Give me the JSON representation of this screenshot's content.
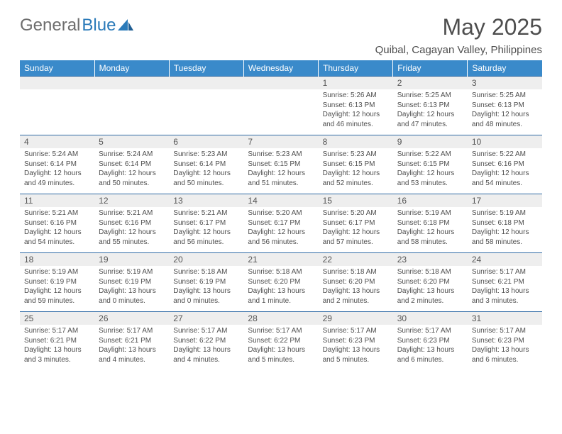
{
  "brand": {
    "word1": "General",
    "word2": "Blue",
    "word1_color": "#6d6d6d",
    "word2_color": "#2a7ab9"
  },
  "title": "May 2025",
  "location": "Quibal, Cagayan Valley, Philippines",
  "colors": {
    "header_bg": "#3a8aca",
    "header_text": "#ffffff",
    "rule": "#2f6aa5",
    "daynum_bg": "#eeeeee",
    "body_text": "#4e4e4e"
  },
  "dayHeaders": [
    "Sunday",
    "Monday",
    "Tuesday",
    "Wednesday",
    "Thursday",
    "Friday",
    "Saturday"
  ],
  "weeks": [
    {
      "nums": [
        "",
        "",
        "",
        "",
        "1",
        "2",
        "3"
      ],
      "cells": [
        {
          "sunrise": "",
          "sunset": "",
          "daylight": ""
        },
        {
          "sunrise": "",
          "sunset": "",
          "daylight": ""
        },
        {
          "sunrise": "",
          "sunset": "",
          "daylight": ""
        },
        {
          "sunrise": "",
          "sunset": "",
          "daylight": ""
        },
        {
          "sunrise": "Sunrise: 5:26 AM",
          "sunset": "Sunset: 6:13 PM",
          "daylight": "Daylight: 12 hours and 46 minutes."
        },
        {
          "sunrise": "Sunrise: 5:25 AM",
          "sunset": "Sunset: 6:13 PM",
          "daylight": "Daylight: 12 hours and 47 minutes."
        },
        {
          "sunrise": "Sunrise: 5:25 AM",
          "sunset": "Sunset: 6:13 PM",
          "daylight": "Daylight: 12 hours and 48 minutes."
        }
      ]
    },
    {
      "nums": [
        "4",
        "5",
        "6",
        "7",
        "8",
        "9",
        "10"
      ],
      "cells": [
        {
          "sunrise": "Sunrise: 5:24 AM",
          "sunset": "Sunset: 6:14 PM",
          "daylight": "Daylight: 12 hours and 49 minutes."
        },
        {
          "sunrise": "Sunrise: 5:24 AM",
          "sunset": "Sunset: 6:14 PM",
          "daylight": "Daylight: 12 hours and 50 minutes."
        },
        {
          "sunrise": "Sunrise: 5:23 AM",
          "sunset": "Sunset: 6:14 PM",
          "daylight": "Daylight: 12 hours and 50 minutes."
        },
        {
          "sunrise": "Sunrise: 5:23 AM",
          "sunset": "Sunset: 6:15 PM",
          "daylight": "Daylight: 12 hours and 51 minutes."
        },
        {
          "sunrise": "Sunrise: 5:23 AM",
          "sunset": "Sunset: 6:15 PM",
          "daylight": "Daylight: 12 hours and 52 minutes."
        },
        {
          "sunrise": "Sunrise: 5:22 AM",
          "sunset": "Sunset: 6:15 PM",
          "daylight": "Daylight: 12 hours and 53 minutes."
        },
        {
          "sunrise": "Sunrise: 5:22 AM",
          "sunset": "Sunset: 6:16 PM",
          "daylight": "Daylight: 12 hours and 54 minutes."
        }
      ]
    },
    {
      "nums": [
        "11",
        "12",
        "13",
        "14",
        "15",
        "16",
        "17"
      ],
      "cells": [
        {
          "sunrise": "Sunrise: 5:21 AM",
          "sunset": "Sunset: 6:16 PM",
          "daylight": "Daylight: 12 hours and 54 minutes."
        },
        {
          "sunrise": "Sunrise: 5:21 AM",
          "sunset": "Sunset: 6:16 PM",
          "daylight": "Daylight: 12 hours and 55 minutes."
        },
        {
          "sunrise": "Sunrise: 5:21 AM",
          "sunset": "Sunset: 6:17 PM",
          "daylight": "Daylight: 12 hours and 56 minutes."
        },
        {
          "sunrise": "Sunrise: 5:20 AM",
          "sunset": "Sunset: 6:17 PM",
          "daylight": "Daylight: 12 hours and 56 minutes."
        },
        {
          "sunrise": "Sunrise: 5:20 AM",
          "sunset": "Sunset: 6:17 PM",
          "daylight": "Daylight: 12 hours and 57 minutes."
        },
        {
          "sunrise": "Sunrise: 5:19 AM",
          "sunset": "Sunset: 6:18 PM",
          "daylight": "Daylight: 12 hours and 58 minutes."
        },
        {
          "sunrise": "Sunrise: 5:19 AM",
          "sunset": "Sunset: 6:18 PM",
          "daylight": "Daylight: 12 hours and 58 minutes."
        }
      ]
    },
    {
      "nums": [
        "18",
        "19",
        "20",
        "21",
        "22",
        "23",
        "24"
      ],
      "cells": [
        {
          "sunrise": "Sunrise: 5:19 AM",
          "sunset": "Sunset: 6:19 PM",
          "daylight": "Daylight: 12 hours and 59 minutes."
        },
        {
          "sunrise": "Sunrise: 5:19 AM",
          "sunset": "Sunset: 6:19 PM",
          "daylight": "Daylight: 13 hours and 0 minutes."
        },
        {
          "sunrise": "Sunrise: 5:18 AM",
          "sunset": "Sunset: 6:19 PM",
          "daylight": "Daylight: 13 hours and 0 minutes."
        },
        {
          "sunrise": "Sunrise: 5:18 AM",
          "sunset": "Sunset: 6:20 PM",
          "daylight": "Daylight: 13 hours and 1 minute."
        },
        {
          "sunrise": "Sunrise: 5:18 AM",
          "sunset": "Sunset: 6:20 PM",
          "daylight": "Daylight: 13 hours and 2 minutes."
        },
        {
          "sunrise": "Sunrise: 5:18 AM",
          "sunset": "Sunset: 6:20 PM",
          "daylight": "Daylight: 13 hours and 2 minutes."
        },
        {
          "sunrise": "Sunrise: 5:17 AM",
          "sunset": "Sunset: 6:21 PM",
          "daylight": "Daylight: 13 hours and 3 minutes."
        }
      ]
    },
    {
      "nums": [
        "25",
        "26",
        "27",
        "28",
        "29",
        "30",
        "31"
      ],
      "cells": [
        {
          "sunrise": "Sunrise: 5:17 AM",
          "sunset": "Sunset: 6:21 PM",
          "daylight": "Daylight: 13 hours and 3 minutes."
        },
        {
          "sunrise": "Sunrise: 5:17 AM",
          "sunset": "Sunset: 6:21 PM",
          "daylight": "Daylight: 13 hours and 4 minutes."
        },
        {
          "sunrise": "Sunrise: 5:17 AM",
          "sunset": "Sunset: 6:22 PM",
          "daylight": "Daylight: 13 hours and 4 minutes."
        },
        {
          "sunrise": "Sunrise: 5:17 AM",
          "sunset": "Sunset: 6:22 PM",
          "daylight": "Daylight: 13 hours and 5 minutes."
        },
        {
          "sunrise": "Sunrise: 5:17 AM",
          "sunset": "Sunset: 6:23 PM",
          "daylight": "Daylight: 13 hours and 5 minutes."
        },
        {
          "sunrise": "Sunrise: 5:17 AM",
          "sunset": "Sunset: 6:23 PM",
          "daylight": "Daylight: 13 hours and 6 minutes."
        },
        {
          "sunrise": "Sunrise: 5:17 AM",
          "sunset": "Sunset: 6:23 PM",
          "daylight": "Daylight: 13 hours and 6 minutes."
        }
      ]
    }
  ]
}
